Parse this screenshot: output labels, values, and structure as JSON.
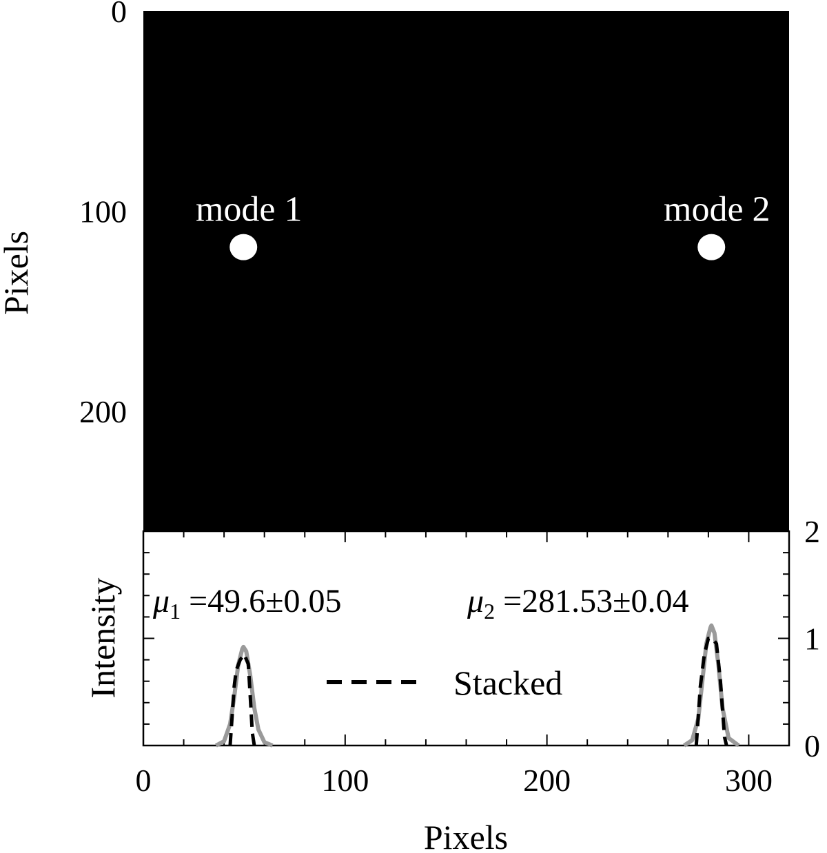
{
  "chart_data": [
    {
      "type": "heatmap",
      "description_free": true,
      "xlim": [
        0,
        320
      ],
      "ylim": [
        0,
        260
      ],
      "y_inverted": true,
      "ylabel": "Pixels",
      "yticks": [
        0,
        100,
        200
      ],
      "colors": {
        "background": "#000000",
        "spot": "#ffffff"
      },
      "spots": [
        {
          "label": "mode 1",
          "x": 49.6,
          "y": 118
        },
        {
          "label": "mode 2",
          "x": 281.5,
          "y": 118
        }
      ]
    },
    {
      "type": "line",
      "xlim": [
        0,
        320
      ],
      "ylim": [
        0,
        2
      ],
      "xlabel": "Pixels",
      "ylabel": "Intensity",
      "xticks": [
        0,
        100,
        200,
        300
      ],
      "yticks": [
        0,
        1,
        2
      ],
      "legend": {
        "label": "Stacked",
        "placement": "center"
      },
      "annotations": [
        {
          "text": "μ₁ =49.6±0.05",
          "symbol": "μ",
          "sub": "1",
          "rest": " =49.6±0.05"
        },
        {
          "text": "μ₂ =281.53±0.04",
          "symbol": "μ",
          "sub": "2",
          "rest": " =281.53±0.04"
        }
      ],
      "colors": {
        "fit": "#9a9a9a",
        "stacked": "#000000"
      },
      "series": [
        {
          "style": "solid-gray",
          "x": [
            36,
            40,
            43,
            45,
            47,
            49,
            49.6,
            51,
            53,
            55,
            57,
            60,
            64,
            268,
            272,
            275,
            277,
            279,
            281,
            281.5,
            283,
            285,
            287,
            290,
            295
          ],
          "y": [
            0.0,
            0.04,
            0.2,
            0.45,
            0.75,
            0.9,
            0.92,
            0.88,
            0.65,
            0.35,
            0.15,
            0.03,
            0.0,
            0.0,
            0.05,
            0.25,
            0.6,
            0.95,
            1.1,
            1.12,
            1.05,
            0.75,
            0.35,
            0.07,
            0.0
          ]
        },
        {
          "style": "dashed-black",
          "x": [
            43,
            45,
            46,
            48,
            50,
            52,
            53,
            54,
            55,
            274,
            276,
            278,
            280,
            282,
            284,
            286,
            288,
            289
          ],
          "y": [
            0.0,
            0.55,
            0.7,
            0.8,
            0.85,
            0.76,
            0.45,
            0.12,
            0.0,
            0.0,
            0.55,
            0.85,
            1.0,
            1.0,
            0.95,
            0.6,
            0.08,
            0.0
          ]
        }
      ]
    }
  ]
}
